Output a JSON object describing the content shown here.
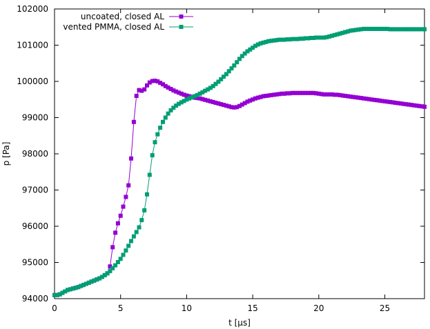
{
  "chart_data": {
    "type": "line",
    "xlabel": "t [µs]",
    "ylabel": "p [Pa]",
    "xlim": [
      0,
      28
    ],
    "ylim": [
      94000,
      102000
    ],
    "x_ticks": [
      0,
      5,
      10,
      15,
      20,
      25
    ],
    "x_tick_labels": [
      "0",
      "5",
      "10",
      "15",
      "20",
      "25"
    ],
    "y_ticks": [
      94000,
      95000,
      96000,
      97000,
      98000,
      99000,
      100000,
      101000,
      102000
    ],
    "y_tick_labels": [
      "94000",
      "95000",
      "96000",
      "97000",
      "98000",
      "99000",
      "100000",
      "101000",
      "102000"
    ],
    "grid": false,
    "legend_position": "top-left",
    "series": [
      {
        "name": "uncoated, closed AL",
        "color": "#9400d3",
        "marker": "square",
        "x": [
          0.0,
          0.2,
          0.4,
          0.6,
          0.8,
          1.0,
          1.2,
          1.4,
          1.6,
          1.8,
          2.0,
          2.2,
          2.4,
          2.6,
          2.8,
          3.0,
          3.2,
          3.4,
          3.6,
          3.8,
          4.0,
          4.2,
          4.4,
          4.6,
          4.8,
          5.0,
          5.2,
          5.4,
          5.6,
          5.8,
          6.0,
          6.2,
          6.4,
          6.6,
          6.8,
          7.0,
          7.2,
          7.4,
          7.6,
          7.8,
          8.0,
          8.2,
          8.4,
          8.6,
          8.8,
          9.0,
          9.2,
          9.4,
          9.6,
          9.8,
          10.0,
          10.2,
          10.4,
          10.6,
          10.8,
          11.0,
          11.2,
          11.4,
          11.6,
          11.8,
          12.0,
          12.2,
          12.4,
          12.6,
          12.8,
          13.0,
          13.2,
          13.4,
          13.6,
          13.8,
          14.0,
          14.2,
          14.4,
          14.6,
          14.8,
          15.0,
          15.2,
          15.4,
          15.6,
          15.8,
          16.0,
          16.2,
          16.4,
          16.6,
          16.8,
          17.0,
          17.2,
          17.4,
          17.6,
          17.8,
          18.0,
          18.2,
          18.4,
          18.6,
          18.8,
          19.0,
          19.2,
          19.4,
          19.6,
          19.8,
          20.0,
          20.2,
          20.4,
          20.6,
          20.8,
          21.0,
          21.2,
          21.4,
          21.6,
          21.8,
          22.0,
          22.2,
          22.4,
          22.6,
          22.8,
          23.0,
          23.2,
          23.4,
          23.6,
          23.8,
          24.0,
          24.2,
          24.4,
          24.6,
          24.8,
          25.0,
          25.2,
          25.4,
          25.6,
          25.8,
          26.0,
          26.2,
          26.4,
          26.6,
          26.8,
          27.0,
          27.2,
          27.4,
          27.6,
          27.8,
          28.0
        ],
        "values": [
          94100,
          94100,
          94120,
          94160,
          94200,
          94240,
          94260,
          94280,
          94300,
          94320,
          94350,
          94380,
          94410,
          94440,
          94470,
          94500,
          94530,
          94560,
          94600,
          94650,
          94700,
          94890,
          95420,
          95820,
          96080,
          96290,
          96540,
          96810,
          97130,
          97870,
          98880,
          99600,
          99760,
          99740,
          99780,
          99890,
          99970,
          100010,
          100020,
          100000,
          99960,
          99920,
          99870,
          99830,
          99790,
          99750,
          99720,
          99690,
          99660,
          99630,
          99610,
          99590,
          99570,
          99550,
          99540,
          99530,
          99510,
          99490,
          99470,
          99450,
          99430,
          99410,
          99390,
          99370,
          99350,
          99330,
          99310,
          99290,
          99280,
          99290,
          99320,
          99360,
          99400,
          99440,
          99470,
          99500,
          99530,
          99550,
          99570,
          99590,
          99600,
          99610,
          99620,
          99630,
          99640,
          99650,
          99660,
          99660,
          99670,
          99670,
          99680,
          99680,
          99680,
          99680,
          99680,
          99680,
          99680,
          99680,
          99680,
          99670,
          99660,
          99650,
          99640,
          99640,
          99640,
          99640,
          99630,
          99630,
          99620,
          99610,
          99600,
          99590,
          99580,
          99570,
          99560,
          99550,
          99540,
          99530,
          99520,
          99510,
          99500,
          99490,
          99480,
          99470,
          99460,
          99450,
          99440,
          99430,
          99420,
          99410,
          99400,
          99390,
          99380,
          99370,
          99360,
          99350,
          99340,
          99330,
          99320,
          99310,
          99300
        ]
      },
      {
        "name": "vented PMMA, closed AL",
        "color": "#009e73",
        "marker": "square",
        "x": [
          0.0,
          0.2,
          0.4,
          0.6,
          0.8,
          1.0,
          1.2,
          1.4,
          1.6,
          1.8,
          2.0,
          2.2,
          2.4,
          2.6,
          2.8,
          3.0,
          3.2,
          3.4,
          3.6,
          3.8,
          4.0,
          4.2,
          4.4,
          4.6,
          4.8,
          5.0,
          5.2,
          5.4,
          5.6,
          5.8,
          6.0,
          6.2,
          6.4,
          6.6,
          6.8,
          7.0,
          7.2,
          7.4,
          7.6,
          7.8,
          8.0,
          8.2,
          8.4,
          8.6,
          8.8,
          9.0,
          9.2,
          9.4,
          9.6,
          9.8,
          10.0,
          10.2,
          10.4,
          10.6,
          10.8,
          11.0,
          11.2,
          11.4,
          11.6,
          11.8,
          12.0,
          12.2,
          12.4,
          12.6,
          12.8,
          13.0,
          13.2,
          13.4,
          13.6,
          13.8,
          14.0,
          14.2,
          14.4,
          14.6,
          14.8,
          15.0,
          15.2,
          15.4,
          15.6,
          15.8,
          16.0,
          16.2,
          16.4,
          16.6,
          16.8,
          17.0,
          17.2,
          17.4,
          17.6,
          17.8,
          18.0,
          18.2,
          18.4,
          18.6,
          18.8,
          19.0,
          19.2,
          19.4,
          19.6,
          19.8,
          20.0,
          20.2,
          20.4,
          20.6,
          20.8,
          21.0,
          21.2,
          21.4,
          21.6,
          21.8,
          22.0,
          22.2,
          22.4,
          22.6,
          22.8,
          23.0,
          23.2,
          23.4,
          23.6,
          23.8,
          24.0,
          24.2,
          24.4,
          24.6,
          24.8,
          25.0,
          25.2,
          25.4,
          25.6,
          25.8,
          26.0,
          26.2,
          26.4,
          26.6,
          26.8,
          27.0,
          27.2,
          27.4,
          27.6,
          27.8,
          28.0
        ],
        "values": [
          94100,
          94100,
          94120,
          94160,
          94200,
          94240,
          94260,
          94280,
          94300,
          94320,
          94350,
          94380,
          94410,
          94440,
          94470,
          94500,
          94530,
          94560,
          94600,
          94650,
          94700,
          94760,
          94840,
          94920,
          95010,
          95100,
          95210,
          95330,
          95460,
          95590,
          95720,
          95840,
          95970,
          96170,
          96440,
          96880,
          97420,
          97960,
          98320,
          98540,
          98720,
          98880,
          99000,
          99110,
          99200,
          99270,
          99330,
          99380,
          99420,
          99460,
          99500,
          99530,
          99560,
          99590,
          99620,
          99660,
          99700,
          99740,
          99780,
          99820,
          99870,
          99930,
          99990,
          100060,
          100130,
          100200,
          100280,
          100360,
          100440,
          100530,
          100620,
          100700,
          100770,
          100830,
          100880,
          100930,
          100980,
          101020,
          101050,
          101070,
          101090,
          101110,
          101120,
          101130,
          101140,
          101150,
          101150,
          101150,
          101160,
          101160,
          101170,
          101170,
          101170,
          101180,
          101180,
          101190,
          101190,
          101200,
          101200,
          101210,
          101210,
          101210,
          101210,
          101220,
          101240,
          101260,
          101280,
          101300,
          101320,
          101340,
          101360,
          101380,
          101400,
          101410,
          101420,
          101430,
          101440,
          101450,
          101450,
          101450,
          101450,
          101450,
          101450,
          101450,
          101450,
          101450,
          101450,
          101440,
          101440,
          101440,
          101440,
          101440,
          101440,
          101440,
          101440,
          101440,
          101440,
          101440,
          101440,
          101440,
          101440
        ]
      }
    ]
  }
}
